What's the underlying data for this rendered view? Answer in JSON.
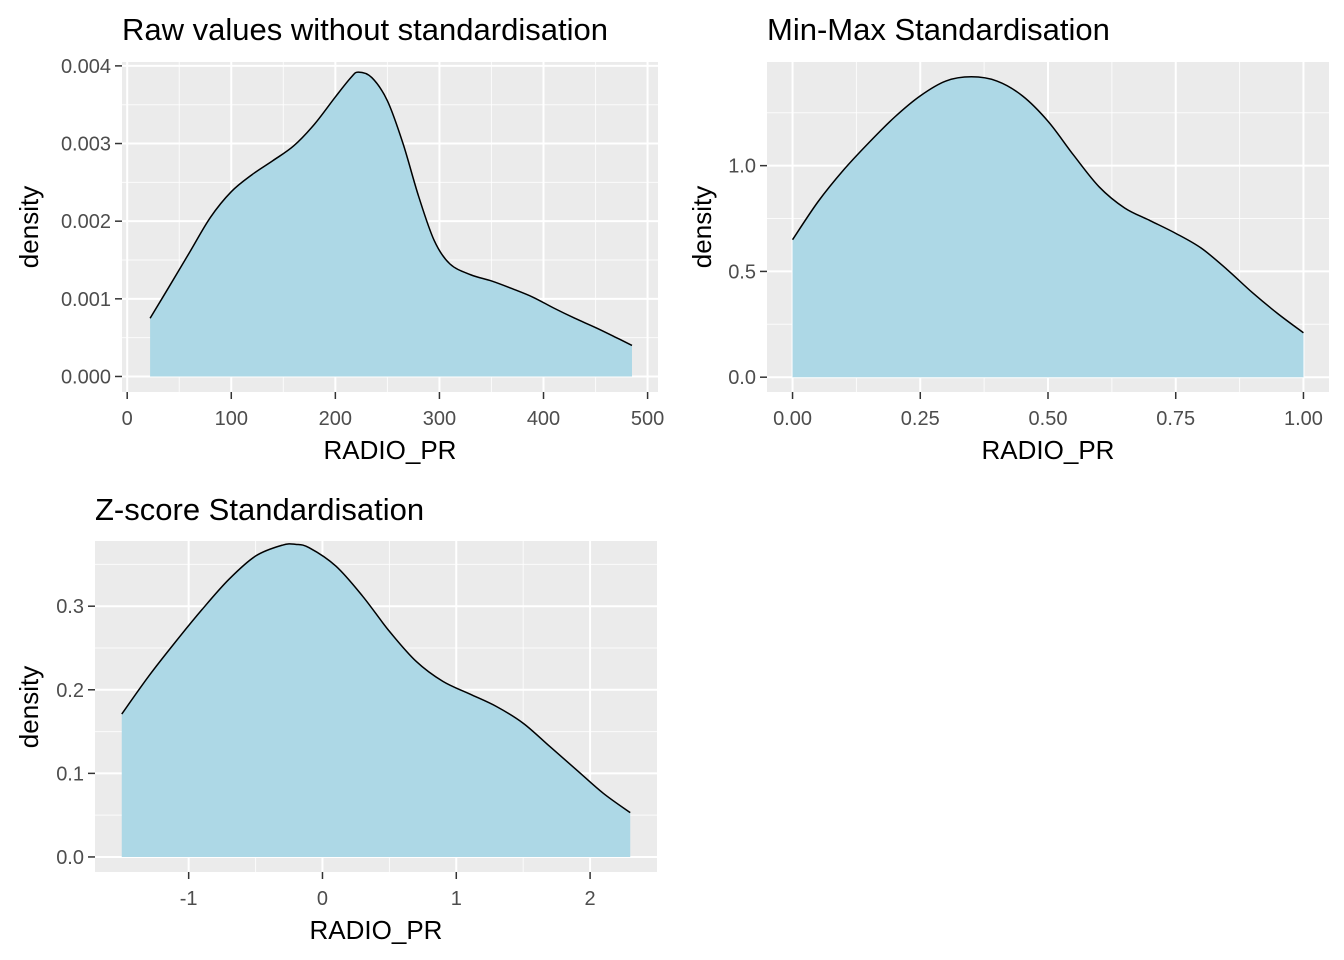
{
  "colors": {
    "fill": "#add8e6",
    "outline": "#000000",
    "panel_background": "#ebebeb",
    "grid": "#ffffff",
    "tick_label": "#4d4d4d"
  },
  "chart_data": [
    {
      "type": "area",
      "title": "Raw values without standardisation",
      "xlabel": "RADIO_PR",
      "ylabel": "density",
      "xlim": [
        -5,
        510
      ],
      "ylim": [
        -0.0002,
        0.00405
      ],
      "x_ticks": [
        0,
        100,
        200,
        300,
        400,
        500
      ],
      "x_tick_labels": [
        "0",
        "100",
        "200",
        "300",
        "400",
        "500"
      ],
      "y_ticks": [
        0.0,
        0.001,
        0.002,
        0.003,
        0.004
      ],
      "y_tick_labels": [
        "0.000",
        "0.001",
        "0.002",
        "0.003",
        "0.004"
      ],
      "grid": true,
      "series": [
        {
          "x": [
            22,
            40,
            60,
            80,
            100,
            120,
            140,
            160,
            180,
            200,
            215,
            222,
            235,
            250,
            265,
            280,
            295,
            310,
            330,
            350,
            370,
            390,
            410,
            430,
            450,
            470,
            485
          ],
          "y": [
            0.00075,
            0.00115,
            0.0016,
            0.00205,
            0.00238,
            0.0026,
            0.00278,
            0.00297,
            0.00325,
            0.0036,
            0.00385,
            0.00392,
            0.00385,
            0.00355,
            0.003,
            0.00232,
            0.00175,
            0.00145,
            0.00131,
            0.00123,
            0.00113,
            0.00102,
            0.00088,
            0.00075,
            0.00063,
            0.0005,
            0.0004
          ]
        }
      ]
    },
    {
      "type": "area",
      "title": "Min-Max Standardisation",
      "xlabel": "RADIO_PR",
      "ylabel": "density",
      "xlim": [
        -0.05,
        1.05
      ],
      "ylim": [
        -0.07,
        1.49
      ],
      "x_ticks": [
        0.0,
        0.25,
        0.5,
        0.75,
        1.0
      ],
      "x_tick_labels": [
        "0.00",
        "0.25",
        "0.50",
        "0.75",
        "1.00"
      ],
      "y_ticks": [
        0.0,
        0.5,
        1.0
      ],
      "y_tick_labels": [
        "0.0",
        "0.5",
        "1.0"
      ],
      "grid": true,
      "series": [
        {
          "x": [
            0.0,
            0.05,
            0.1,
            0.15,
            0.2,
            0.25,
            0.3,
            0.35,
            0.4,
            0.45,
            0.5,
            0.55,
            0.6,
            0.65,
            0.7,
            0.75,
            0.8,
            0.85,
            0.9,
            0.95,
            1.0
          ],
          "y": [
            0.65,
            0.83,
            0.98,
            1.11,
            1.23,
            1.33,
            1.4,
            1.42,
            1.4,
            1.33,
            1.21,
            1.05,
            0.9,
            0.8,
            0.74,
            0.68,
            0.61,
            0.51,
            0.4,
            0.3,
            0.21
          ]
        }
      ]
    },
    {
      "type": "area",
      "title": "Z-score Standardisation",
      "xlabel": "RADIO_PR",
      "ylabel": "density",
      "xlim": [
        -1.7,
        2.5
      ],
      "ylim": [
        -0.018,
        0.378
      ],
      "x_ticks": [
        -1,
        0,
        1,
        2
      ],
      "x_tick_labels": [
        "-1",
        "0",
        "1",
        "2"
      ],
      "y_ticks": [
        0.0,
        0.1,
        0.2,
        0.3
      ],
      "y_tick_labels": [
        "0.0",
        "0.1",
        "0.2",
        "0.3"
      ],
      "grid": true,
      "series": [
        {
          "x": [
            -1.5,
            -1.3,
            -1.1,
            -0.9,
            -0.7,
            -0.5,
            -0.3,
            -0.2,
            -0.1,
            0.1,
            0.3,
            0.5,
            0.7,
            0.9,
            1.1,
            1.3,
            1.5,
            1.7,
            1.9,
            2.1,
            2.3
          ],
          "y": [
            0.171,
            0.216,
            0.257,
            0.296,
            0.332,
            0.36,
            0.373,
            0.374,
            0.37,
            0.348,
            0.312,
            0.27,
            0.234,
            0.21,
            0.195,
            0.18,
            0.16,
            0.132,
            0.104,
            0.076,
            0.053
          ]
        }
      ]
    }
  ]
}
